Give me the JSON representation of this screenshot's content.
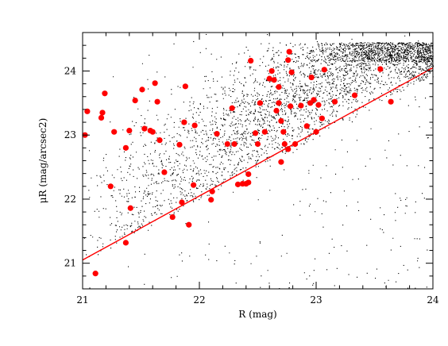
{
  "chart_data": {
    "type": "scatter",
    "xlabel": "R (mag)",
    "ylabel": "μR (mag/arcsec2)",
    "xlim": [
      21,
      24
    ],
    "ylim": [
      20.6,
      24.6
    ],
    "xticks": [
      21,
      22,
      23,
      24
    ],
    "yticks": [
      21,
      22,
      23,
      24
    ],
    "grid": false,
    "colors": {
      "background_points": "#000000",
      "highlight_points": "#ff0000",
      "fit_line": "#ff0000"
    },
    "background_cloud": {
      "description_hidden": true,
      "approx_count": 9000
    },
    "fit_line": {
      "x": [
        21.0,
        24.0
      ],
      "y": [
        21.05,
        24.05
      ]
    },
    "series": [
      {
        "points": [
          [
            21.02,
            23.0
          ],
          [
            21.04,
            23.37
          ],
          [
            21.11,
            20.84
          ],
          [
            21.16,
            23.27
          ],
          [
            21.17,
            23.35
          ],
          [
            21.19,
            23.65
          ],
          [
            21.24,
            22.2
          ],
          [
            21.27,
            23.05
          ],
          [
            21.37,
            22.8
          ],
          [
            21.37,
            21.32
          ],
          [
            21.4,
            23.07
          ],
          [
            21.41,
            21.86
          ],
          [
            21.45,
            23.54
          ],
          [
            21.51,
            23.71
          ],
          [
            21.53,
            23.1
          ],
          [
            21.58,
            23.07
          ],
          [
            21.6,
            23.05
          ],
          [
            21.62,
            23.81
          ],
          [
            21.64,
            23.52
          ],
          [
            21.66,
            22.92
          ],
          [
            21.7,
            22.42
          ],
          [
            21.77,
            21.72
          ],
          [
            21.83,
            22.85
          ],
          [
            21.85,
            21.95
          ],
          [
            21.87,
            23.2
          ],
          [
            21.88,
            23.76
          ],
          [
            21.91,
            21.6
          ],
          [
            21.95,
            22.22
          ],
          [
            21.96,
            23.15
          ],
          [
            22.1,
            21.99
          ],
          [
            22.11,
            22.12
          ],
          [
            22.15,
            23.02
          ],
          [
            22.24,
            22.86
          ],
          [
            22.28,
            23.42
          ],
          [
            22.3,
            22.86
          ],
          [
            22.33,
            22.23
          ],
          [
            22.37,
            22.24
          ],
          [
            22.4,
            22.24
          ],
          [
            22.42,
            22.26
          ],
          [
            22.42,
            22.39
          ],
          [
            22.44,
            24.16
          ],
          [
            22.48,
            23.03
          ],
          [
            22.5,
            22.86
          ],
          [
            22.52,
            23.5
          ],
          [
            22.56,
            23.05
          ],
          [
            22.6,
            23.88
          ],
          [
            22.62,
            24.0
          ],
          [
            22.64,
            23.86
          ],
          [
            22.66,
            23.38
          ],
          [
            22.68,
            23.5
          ],
          [
            22.68,
            23.75
          ],
          [
            22.7,
            22.58
          ],
          [
            22.7,
            23.22
          ],
          [
            22.72,
            23.05
          ],
          [
            22.73,
            22.86
          ],
          [
            22.76,
            22.78
          ],
          [
            22.76,
            24.17
          ],
          [
            22.77,
            24.3
          ],
          [
            22.78,
            23.45
          ],
          [
            22.79,
            23.98
          ],
          [
            22.82,
            22.86
          ],
          [
            22.87,
            23.46
          ],
          [
            22.92,
            23.14
          ],
          [
            22.95,
            23.5
          ],
          [
            22.96,
            23.9
          ],
          [
            22.98,
            23.55
          ],
          [
            23.0,
            23.05
          ],
          [
            23.02,
            23.47
          ],
          [
            23.05,
            23.26
          ],
          [
            23.07,
            24.02
          ],
          [
            23.16,
            23.52
          ],
          [
            23.33,
            23.62
          ],
          [
            23.55,
            24.03
          ],
          [
            23.64,
            23.52
          ]
        ]
      }
    ]
  }
}
